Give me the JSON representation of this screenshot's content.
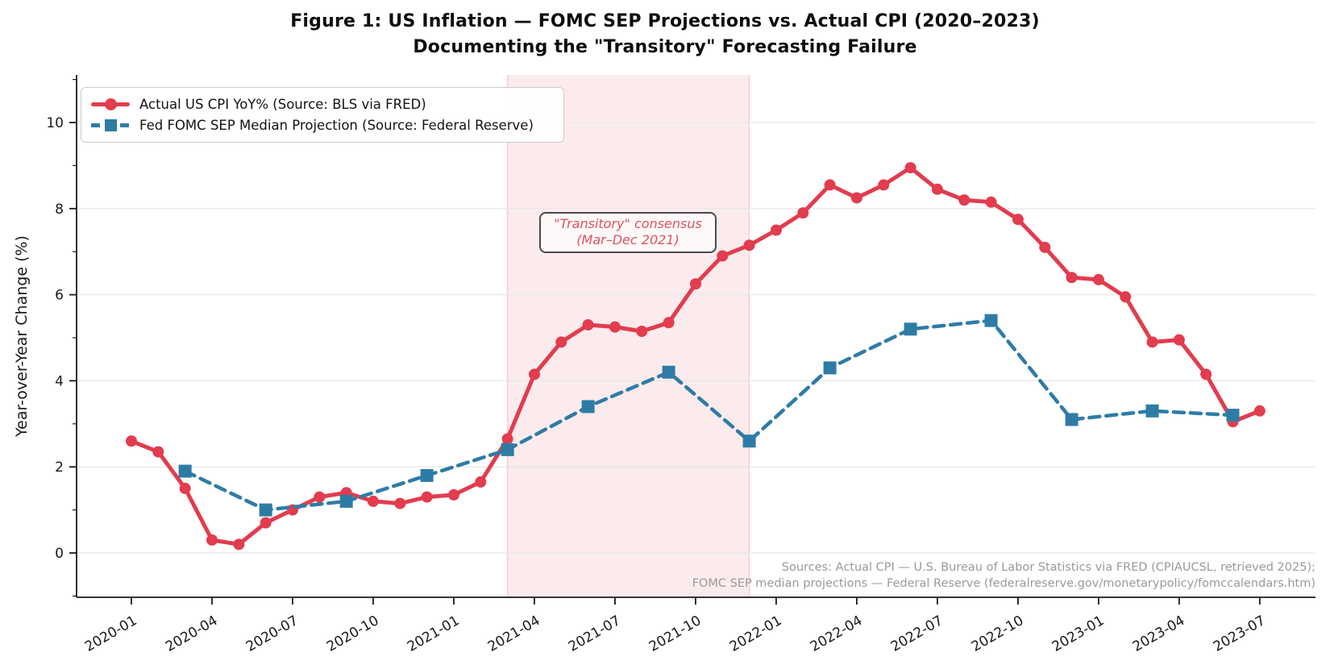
{
  "title": {
    "line1": "Figure 1: US Inflation — FOMC SEP Projections vs. Actual CPI (2020–2023)",
    "line2": "Documenting the \"Transitory\" Forecasting Failure"
  },
  "legend": {
    "items": [
      {
        "label": "Actual US CPI YoY% (Source: BLS via FRED)",
        "marker": "red-circle-line"
      },
      {
        "label": "Fed FOMC SEP Median Projection (Source: Federal Reserve)",
        "marker": "blue-square-dashed-line"
      }
    ]
  },
  "annotation": {
    "line1": "\"Transitory\" consensus",
    "line2": "(Mar–Dec 2021)"
  },
  "sources": {
    "line1": "Sources: Actual CPI — U.S. Bureau of Labor Statistics via FRED (CPIAUCSL, retrieved 2025);",
    "line2": "FOMC SEP median projections — Federal Reserve (federalreserve.gov/monetarypolicy/fomccalendars.htm)"
  },
  "colors": {
    "cpi_red": "#e23c4e",
    "fomc_blue": "#2e7ca6",
    "band_pink": "rgba(226,60,78,0.10)",
    "band_edge": "rgba(226,60,78,0.22)",
    "gridline": "#e8e8e8",
    "axis_ink": "#1a1a1a",
    "source_gray": "#9a9a9a"
  },
  "chart_data": {
    "type": "line",
    "title": "Figure 1: US Inflation — FOMC SEP Projections vs. Actual CPI (2020–2023)",
    "subtitle": "Documenting the \"Transitory\" Forecasting Failure",
    "xlabel": "",
    "ylabel": "Year-over-Year Change (%)",
    "ylim": [
      -1,
      11.1
    ],
    "grid": "horizontal",
    "legend_position": "upper-left",
    "y_ticks": [
      0,
      2,
      4,
      6,
      8,
      10
    ],
    "x_ticks": [
      "2020-01",
      "2020-04",
      "2020-07",
      "2020-10",
      "2021-01",
      "2021-04",
      "2021-07",
      "2021-10",
      "2022-01",
      "2022-04",
      "2022-07",
      "2022-10",
      "2023-01",
      "2023-04",
      "2023-07"
    ],
    "series": [
      {
        "name": "Actual US CPI YoY% (Source: BLS via FRED)",
        "key": "actual-cpi",
        "style": "solid",
        "marker": "circle",
        "x": [
          "2020-01",
          "2020-02",
          "2020-03",
          "2020-04",
          "2020-05",
          "2020-06",
          "2020-07",
          "2020-08",
          "2020-09",
          "2020-10",
          "2020-11",
          "2020-12",
          "2021-01",
          "2021-02",
          "2021-03",
          "2021-04",
          "2021-05",
          "2021-06",
          "2021-07",
          "2021-08",
          "2021-09",
          "2021-10",
          "2021-11",
          "2021-12",
          "2022-01",
          "2022-02",
          "2022-03",
          "2022-04",
          "2022-05",
          "2022-06",
          "2022-07",
          "2022-08",
          "2022-09",
          "2022-10",
          "2022-11",
          "2022-12",
          "2023-01",
          "2023-02",
          "2023-03",
          "2023-04",
          "2023-05",
          "2023-06",
          "2023-07"
        ],
        "values": [
          2.6,
          2.35,
          1.5,
          0.3,
          0.2,
          0.7,
          1.0,
          1.3,
          1.4,
          1.2,
          1.15,
          1.3,
          1.35,
          1.65,
          2.65,
          4.15,
          4.9,
          5.3,
          5.25,
          5.15,
          5.35,
          6.25,
          6.9,
          7.15,
          7.5,
          7.9,
          8.55,
          8.25,
          8.55,
          8.95,
          8.45,
          8.2,
          8.15,
          7.75,
          7.1,
          6.4,
          6.35,
          5.95,
          4.9,
          4.95,
          4.15,
          3.05,
          3.3
        ]
      },
      {
        "name": "Fed FOMC SEP Median Projection (Source: Federal Reserve)",
        "key": "fomc-sep",
        "style": "dashed",
        "marker": "square",
        "x": [
          "2020-03",
          "2020-06",
          "2020-09",
          "2020-12",
          "2021-03",
          "2021-06",
          "2021-09",
          "2021-12",
          "2022-03",
          "2022-06",
          "2022-09",
          "2022-12",
          "2023-03",
          "2023-06"
        ],
        "values": [
          1.9,
          1.0,
          1.2,
          1.8,
          2.4,
          3.4,
          4.2,
          2.6,
          4.3,
          5.2,
          5.4,
          3.1,
          3.3,
          3.2
        ]
      }
    ],
    "shaded_region": {
      "from": "2021-03",
      "to": "2021-12",
      "label": "\"Transitory\" consensus (Mar–Dec 2021)"
    }
  }
}
